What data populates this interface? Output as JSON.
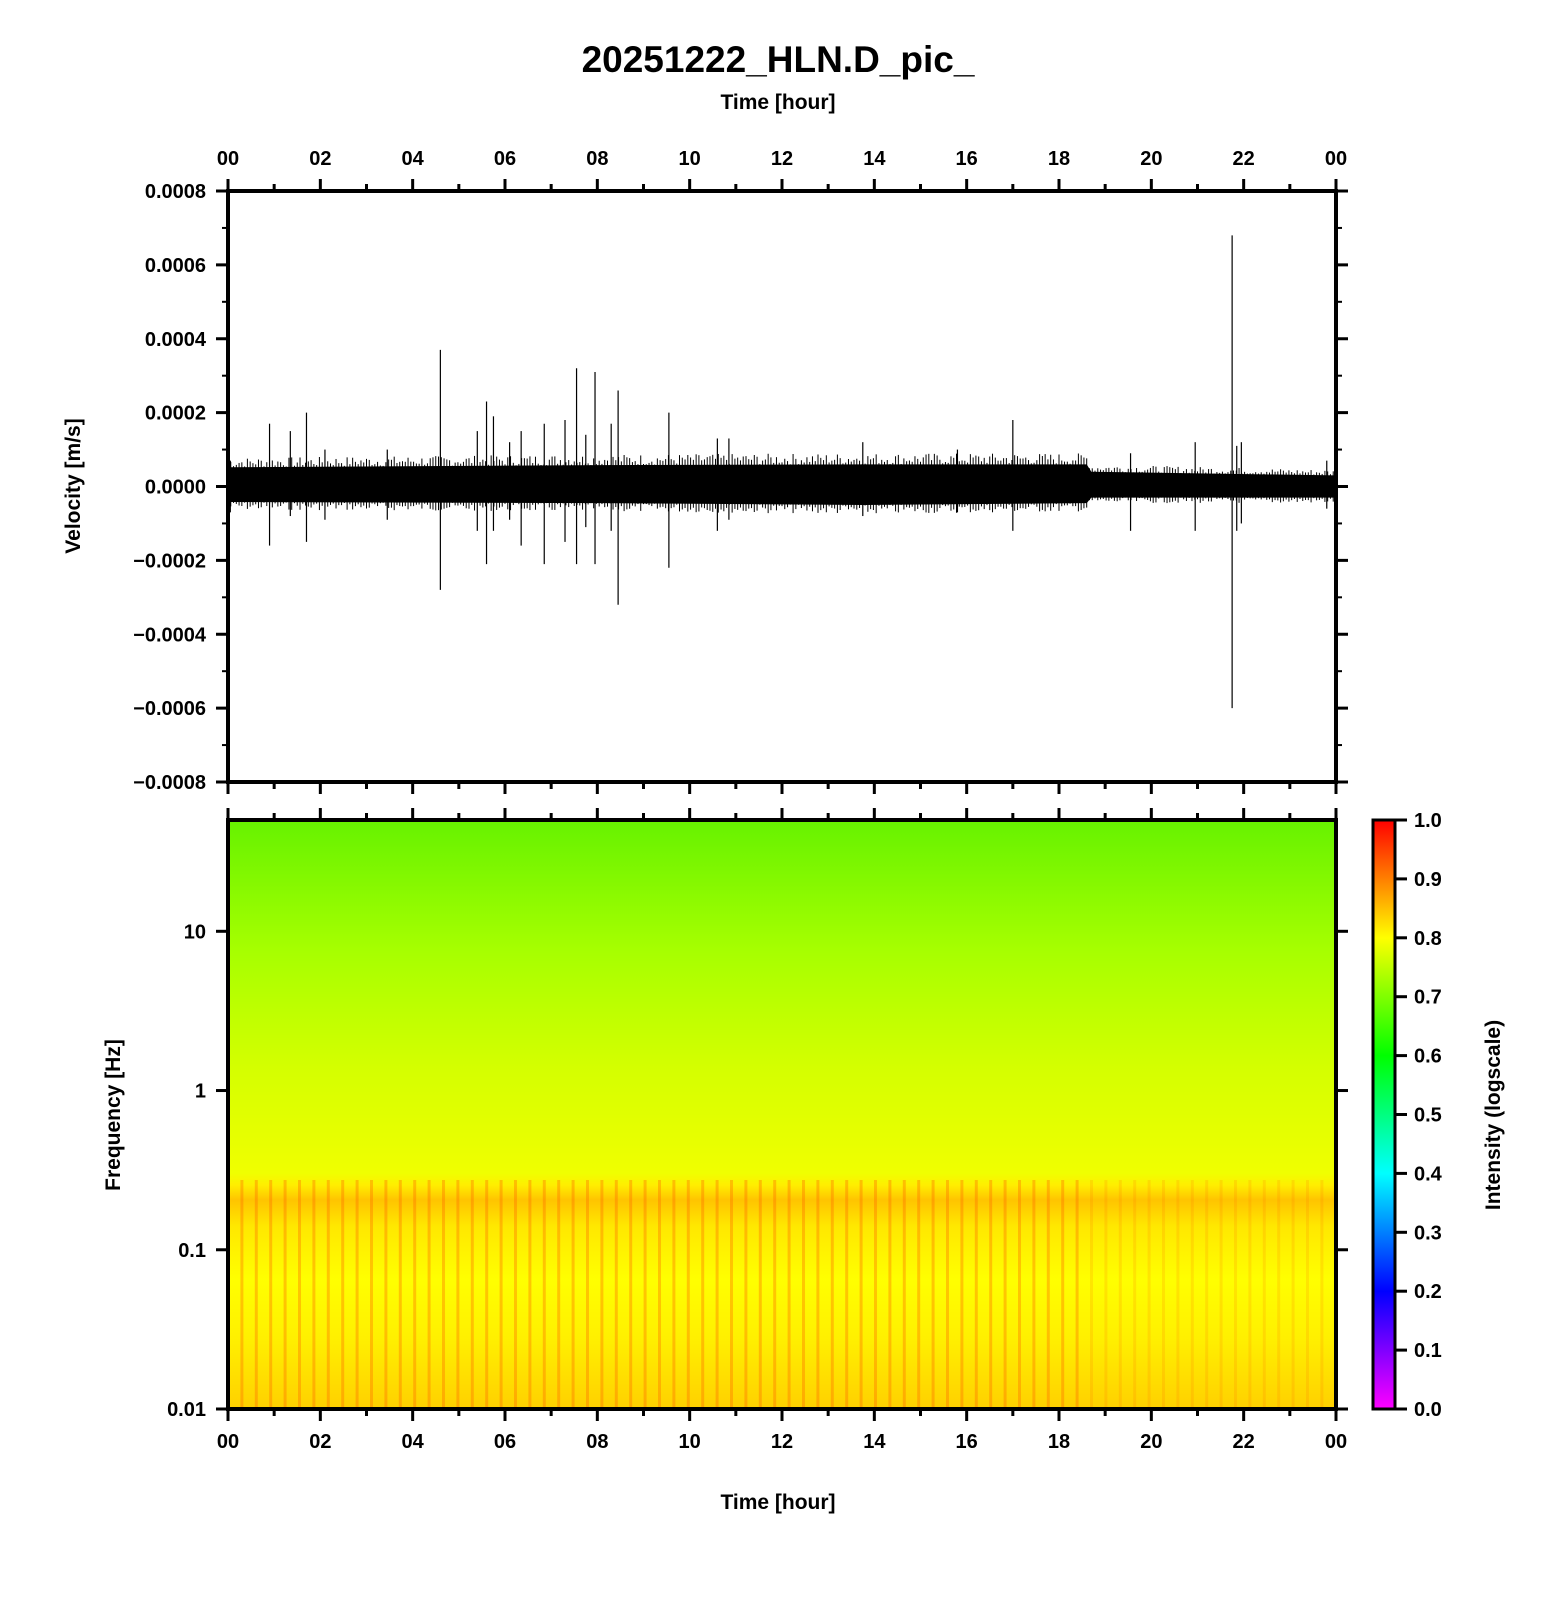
{
  "figure": {
    "title": "20251222_HLN.D_pic_",
    "top_axis_label": "Time [hour]",
    "bottom_axis_label": "Time [hour]"
  },
  "chart_data": [
    {
      "type": "line",
      "panel": "waveform",
      "xlabel": "Time [hour]",
      "ylabel": "Velocity [m/s]",
      "xlim": [
        0,
        24
      ],
      "ylim": [
        -0.0008,
        0.0008
      ],
      "x_tick_labels": [
        "00",
        "02",
        "04",
        "06",
        "08",
        "10",
        "12",
        "14",
        "16",
        "18",
        "20",
        "22",
        "00"
      ],
      "y_tick_labels": [
        "0.0008",
        "0.0006",
        "0.0004",
        "0.0002",
        "0.0000",
        "−0.0002",
        "−0.0004",
        "−0.0006",
        "−0.0008"
      ],
      "y_ticks": [
        0.0008,
        0.0006,
        0.0004,
        0.0002,
        0,
        -0.0002,
        -0.0004,
        -0.0006,
        -0.0008
      ],
      "noise_envelope": [
        {
          "x": 0,
          "max": 5.2e-05,
          "min": -4.2e-05
        },
        {
          "x": 8,
          "max": 5.8e-05,
          "min": -4.5e-05
        },
        {
          "x": 13.8,
          "max": 6e-05,
          "min": -5e-05
        },
        {
          "x": 18.6,
          "max": 6e-05,
          "min": -4.5e-05
        },
        {
          "x": 18.7,
          "max": 4e-05,
          "min": -3e-05
        },
        {
          "x": 24,
          "max": 3e-05,
          "min": -3e-05
        }
      ],
      "spikes": [
        {
          "x": 0.05,
          "max": 7e-05,
          "min": -7e-05
        },
        {
          "x": 0.9,
          "max": 0.00017,
          "min": -0.00016
        },
        {
          "x": 1.35,
          "max": 0.00015,
          "min": -8e-05
        },
        {
          "x": 1.7,
          "max": 0.0002,
          "min": -0.00015
        },
        {
          "x": 2.1,
          "max": 0.0001,
          "min": -9e-05
        },
        {
          "x": 3.45,
          "max": 0.0001,
          "min": -9e-05
        },
        {
          "x": 4.6,
          "max": 0.00037,
          "min": -0.00028
        },
        {
          "x": 5.4,
          "max": 0.00015,
          "min": -0.00012
        },
        {
          "x": 5.6,
          "max": 0.00023,
          "min": -0.00021
        },
        {
          "x": 5.75,
          "max": 0.00019,
          "min": -0.00012
        },
        {
          "x": 6.1,
          "max": 0.00012,
          "min": -9e-05
        },
        {
          "x": 6.35,
          "max": 0.00015,
          "min": -0.00016
        },
        {
          "x": 6.85,
          "max": 0.00017,
          "min": -0.00021
        },
        {
          "x": 7.3,
          "max": 0.00018,
          "min": -0.00015
        },
        {
          "x": 7.55,
          "max": 0.00032,
          "min": -0.00021
        },
        {
          "x": 7.75,
          "max": 0.00014,
          "min": -0.00011
        },
        {
          "x": 7.95,
          "max": 0.00031,
          "min": -0.00021
        },
        {
          "x": 8.3,
          "max": 0.00017,
          "min": -0.00012
        },
        {
          "x": 8.45,
          "max": 0.00026,
          "min": -0.00032
        },
        {
          "x": 9.55,
          "max": 0.0002,
          "min": -0.00022
        },
        {
          "x": 10.6,
          "max": 0.00013,
          "min": -0.00012
        },
        {
          "x": 10.85,
          "max": 0.00013,
          "min": -9e-05
        },
        {
          "x": 13.75,
          "max": 0.00012,
          "min": -8e-05
        },
        {
          "x": 15.8,
          "max": 0.0001,
          "min": -7e-05
        },
        {
          "x": 17.0,
          "max": 0.00018,
          "min": -0.00012
        },
        {
          "x": 19.55,
          "max": 9e-05,
          "min": -0.00012
        },
        {
          "x": 20.95,
          "max": 0.00012,
          "min": -0.00012
        },
        {
          "x": 21.75,
          "max": 0.00068,
          "min": -0.0006
        },
        {
          "x": 21.85,
          "max": 0.00011,
          "min": -0.00012
        },
        {
          "x": 21.95,
          "max": 0.00012,
          "min": -0.0001
        },
        {
          "x": 23.8,
          "max": 7e-05,
          "min": -6e-05
        }
      ]
    },
    {
      "type": "heatmap",
      "panel": "spectrogram",
      "xlabel": "Time [hour]",
      "ylabel": "Frequency [Hz]",
      "xlim": [
        0,
        24
      ],
      "ylim": [
        0.01,
        50
      ],
      "yscale": "log",
      "y_ticks": [
        10,
        1,
        0.1,
        0.01
      ],
      "y_tick_labels": [
        "10",
        "1",
        "0.1",
        "0.01"
      ],
      "x_tick_labels": [
        "00",
        "02",
        "04",
        "06",
        "08",
        "10",
        "12",
        "14",
        "16",
        "18",
        "20",
        "22",
        "00"
      ],
      "intensity_profile": [
        {
          "freq": 50,
          "intensity": 0.66
        },
        {
          "freq": 10,
          "intensity": 0.7
        },
        {
          "freq": 2,
          "intensity": 0.72
        },
        {
          "freq": 0.3,
          "intensity": 0.75
        },
        {
          "freq": 0.25,
          "intensity": 0.85
        },
        {
          "freq": 0.15,
          "intensity": 0.79
        },
        {
          "freq": 0.05,
          "intensity": 0.8
        },
        {
          "freq": 0.01,
          "intensity": 0.83
        }
      ],
      "colorbar": {
        "label": "Intensity (logscale)",
        "range": [
          0.0,
          1.0
        ],
        "tick_labels": [
          "1.0",
          "0.9",
          "0.8",
          "0.7",
          "0.6",
          "0.5",
          "0.4",
          "0.3",
          "0.2",
          "0.1",
          "0.0"
        ],
        "colors": [
          "#ff00ff",
          "#0000ff",
          "#00ffff",
          "#00ff00",
          "#ffff00",
          "#ff0000"
        ]
      }
    }
  ]
}
